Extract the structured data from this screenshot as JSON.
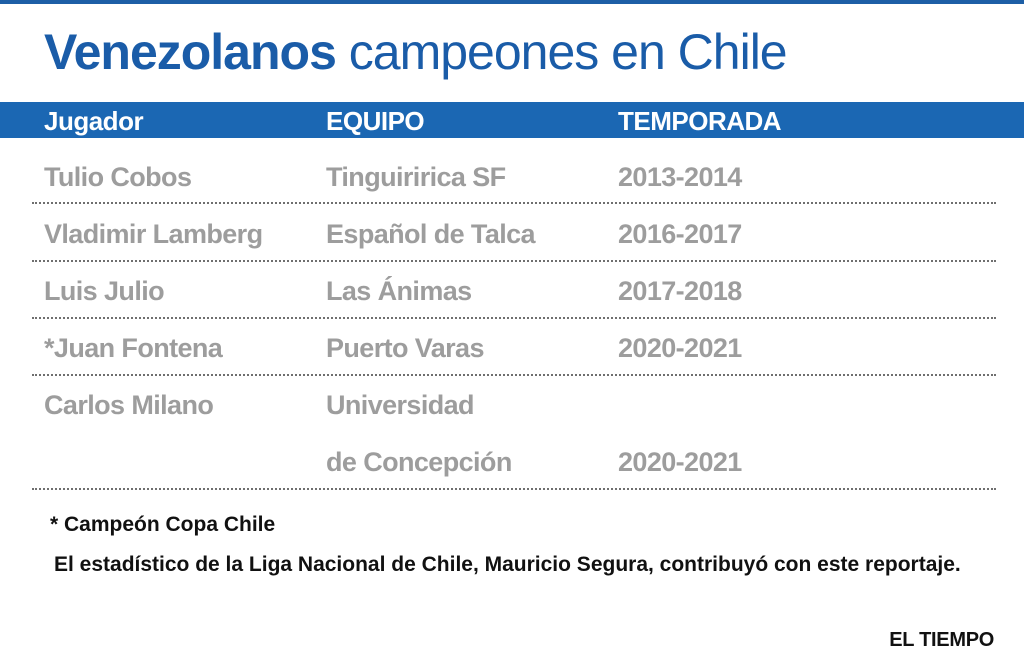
{
  "title": {
    "strong": "Venezolanos",
    "light": " campeones en Chile"
  },
  "table": {
    "headers": [
      "Jugador",
      "EQUIPO",
      "TEMPORADA"
    ],
    "rows": [
      {
        "player": "Tulio Cobos",
        "team": "Tinguiririca SF",
        "team_line2": "",
        "season": "2013-2014"
      },
      {
        "player": "Vladimir Lamberg",
        "team": "Español de Talca",
        "team_line2": "",
        "season": "2016-2017"
      },
      {
        "player": "Luis Julio",
        "team": "Las Ánimas",
        "team_line2": "",
        "season": "2017-2018"
      },
      {
        "player": "*Juan Fontena",
        "team": "Puerto Varas",
        "team_line2": "",
        "season": "2020-2021"
      },
      {
        "player": "Carlos Milano",
        "team": "Universidad",
        "team_line2": "de Concepción",
        "season": "2020-2021"
      }
    ]
  },
  "footnote": "* Campeón Copa Chile",
  "credit": "El estadístico de la Liga Nacional de Chile, Mauricio Segura, contribuyó con este reportaje.",
  "brand": "EL TIEMPO",
  "colors": {
    "title": "#1a5ca8",
    "header_bar": "#1b67b3",
    "cell_text": "#9d9d9d",
    "body_text": "#111111"
  }
}
